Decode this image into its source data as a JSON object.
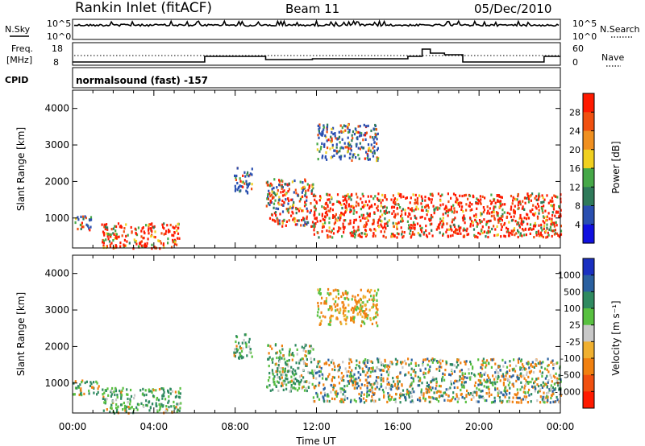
{
  "header": {
    "station": "Rankin Inlet (fitACF)",
    "beam": "Beam 11",
    "date": "05/Dec/2010"
  },
  "params": {
    "nsky_label": "N.Sky",
    "nsearch_label": "N.Search",
    "freq_label_line1": "Freq.",
    "freq_label_line2": "[MHz]",
    "nave_label": "Nave",
    "cpid_label": "CPID",
    "cpid_value": "normalsound (fast) -157",
    "noise_ticks": [
      "10^5",
      "10^0"
    ],
    "noise_ticks_right": [
      "10^5",
      "10^0"
    ],
    "freq_ticks": [
      "18",
      "8"
    ],
    "nave_ticks": [
      "60",
      "0"
    ]
  },
  "chart_data": [
    {
      "type": "heatmap",
      "title": "",
      "ylabel": "Slant Range [km]",
      "xlabel": "",
      "ylim": [
        180,
        4500
      ],
      "yticks": [
        "1000",
        "2000",
        "3000",
        "4000"
      ],
      "xticks": [],
      "colorbar": {
        "label": "Power [dB]",
        "ticks": [
          "4",
          "8",
          "12",
          "16",
          "20",
          "24",
          "28"
        ],
        "colors": [
          "#1010e0",
          "#2a4fb0",
          "#2f7a5a",
          "#46a848",
          "#f0d020",
          "#f09020",
          "#f05010",
          "#ff1a00"
        ]
      },
      "blobs": [
        {
          "t0": 0.0,
          "t1": 0.9,
          "r0": 700,
          "r1": 1100,
          "level": "mixed"
        },
        {
          "t0": 1.4,
          "t1": 5.3,
          "r0": 200,
          "r1": 900,
          "level": "high"
        },
        {
          "t0": 7.9,
          "t1": 8.8,
          "r0": 1700,
          "r1": 2400,
          "level": "low"
        },
        {
          "t0": 9.5,
          "t1": 11.8,
          "r0": 800,
          "r1": 2100,
          "level": "mid"
        },
        {
          "t0": 12.0,
          "t1": 15.0,
          "r0": 2600,
          "r1": 3600,
          "level": "low"
        },
        {
          "t0": 11.8,
          "t1": 24.0,
          "r0": 500,
          "r1": 1700,
          "level": "high"
        }
      ]
    },
    {
      "type": "heatmap",
      "title": "",
      "ylabel": "Slant Range [km]",
      "xlabel": "Time UT",
      "ylim": [
        180,
        4500
      ],
      "yticks": [
        "1000",
        "2000",
        "3000",
        "4000"
      ],
      "xticks": [
        "00:00",
        "04:00",
        "08:00",
        "12:00",
        "16:00",
        "20:00",
        "00:00"
      ],
      "colorbar": {
        "label": "Velocity [m s⁻¹]",
        "ticks": [
          "1000",
          "500",
          "100",
          "25",
          "-25",
          "-100",
          "-500",
          "-1000"
        ],
        "colors": [
          "#1a30c0",
          "#2a60a0",
          "#2f8a60",
          "#58c040",
          "#c8c8c8",
          "#f0b030",
          "#f08010",
          "#f05010",
          "#ff1a00"
        ]
      },
      "blobs": [
        {
          "t0": 0.0,
          "t1": 1.3,
          "r0": 700,
          "r1": 1100,
          "level": "mixed"
        },
        {
          "t0": 1.4,
          "t1": 5.3,
          "r0": 200,
          "r1": 900,
          "level": "green"
        },
        {
          "t0": 7.9,
          "t1": 8.8,
          "r0": 1700,
          "r1": 2400,
          "level": "green"
        },
        {
          "t0": 9.5,
          "t1": 11.8,
          "r0": 800,
          "r1": 2100,
          "level": "green"
        },
        {
          "t0": 12.0,
          "t1": 15.0,
          "r0": 2600,
          "r1": 3600,
          "level": "orange"
        },
        {
          "t0": 11.8,
          "t1": 24.0,
          "r0": 500,
          "r1": 1700,
          "level": "orange-green"
        }
      ]
    }
  ]
}
